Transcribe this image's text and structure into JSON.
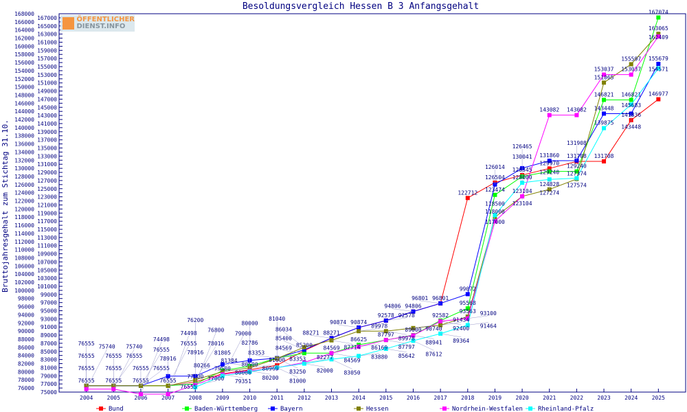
{
  "chart_data": {
    "type": "line",
    "title": "Besoldungsvergleich Hessen B 3 Anfangsgehalt",
    "xlabel": "",
    "ylabel": "Bruttojahresgehalt zum Stichtag 31.10.",
    "ylim": [
      75000,
      168000
    ],
    "ytick_step": 1000,
    "grid": false,
    "legend_position": "bottom",
    "categories": [
      "2004",
      "2005",
      "2006",
      "2007",
      "2008",
      "2009",
      "2010",
      "2011",
      "2012",
      "2013",
      "2014",
      "2015",
      "2016",
      "2017",
      "2018",
      "2019",
      "2020",
      "2021",
      "2022",
      "2023",
      "2024",
      "2025"
    ],
    "series": [
      {
        "name": "Bund",
        "color": "#ff0000",
        "values": [
          76555,
          76555,
          76555,
          76555,
          77500,
          79500,
          80500,
          81600,
          85200,
          88271,
          90874,
          92578,
          94806,
          96801,
          122712,
          126504,
          128345,
          129970,
          131708,
          131708,
          141836,
          146977
        ]
      },
      {
        "name": "Baden-Württemberg",
        "color": "#00ff00",
        "values": [
          76555,
          76555,
          76555,
          76555,
          77000,
          80266,
          81384,
          83353,
          84569,
          84569,
          86625,
          87797,
          89000,
          92582,
          95568,
          123474,
          128000,
          129240,
          129240,
          146821,
          146821,
          167074
        ]
      },
      {
        "name": "Bayern",
        "color": "#0000ff",
        "values": [
          76555,
          76555,
          76555,
          78916,
          78916,
          81805,
          82786,
          83353,
          85400,
          88271,
          90874,
          92578,
          94806,
          96801,
          99072,
          126014,
          130041,
          131860,
          131908,
          143448,
          143448,
          155679
        ]
      },
      {
        "name": "Hessen",
        "color": "#808000",
        "values": [
          76555,
          76555,
          76555,
          76555,
          78016,
          80000,
          80969,
          83250,
          86034,
          87714,
          89978,
          89978,
          90740,
          91434,
          93563,
          118000,
          123104,
          124828,
          127374,
          151065,
          155597,
          163065
        ]
      },
      {
        "name": "Nordrhein-Westfalen",
        "color": "#ff00ff",
        "values": [
          75740,
          75740,
          74498,
          74498,
          76800,
          79351,
          80200,
          81000,
          82277,
          84569,
          86169,
          87797,
          88941,
          92400,
          93100,
          117000,
          123104,
          143082,
          143082,
          153037,
          153037,
          162409
        ]
      },
      {
        "name": "Rheinland-Pfalz",
        "color": "#00ffff",
        "values": [
          null,
          null,
          null,
          null,
          76200,
          79000,
          80000,
          81040,
          82000,
          83050,
          83880,
          85642,
          87612,
          89364,
          91464,
          118500,
          126465,
          127274,
          127574,
          139875,
          145683,
          154571
        ]
      }
    ]
  },
  "logo": {
    "line1": "ÖFFENTLICHER",
    "line2": "DIENST.INFO"
  }
}
